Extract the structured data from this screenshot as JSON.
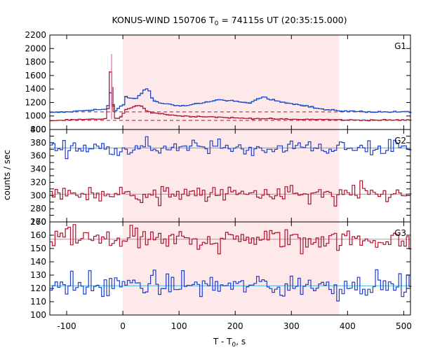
{
  "title": {
    "prefix": "KONUS-WIND 150706 T",
    "sub": "0",
    "suffix": " = 74115s UT (20:35:15.000)"
  },
  "colors": {
    "shade": "#fde8ea",
    "red_series": "#b0102a",
    "blue_series": "#1f3fc8",
    "pink_fit": "#e07ab8",
    "cyan_fit": "#38b8e0",
    "background_dash": "#b0102a"
  },
  "chart_data": {
    "type": "line",
    "title": "KONUS-WIND 150706 T0 = 74115s UT (20:35:15.000)",
    "xlabel": "T - T0, s",
    "ylabel": "counts / sec",
    "xlim": [
      -130,
      512
    ],
    "xticks": [
      -100,
      0,
      100,
      200,
      300,
      400,
      500
    ],
    "shaded_interval": [
      0,
      385
    ],
    "grid": false,
    "panels": [
      {
        "name": "G1",
        "ylim": [
          800,
          2200
        ],
        "yticks": [
          800,
          1000,
          1200,
          1400,
          1600,
          1800,
          2000,
          2200
        ],
        "series": [
          {
            "color": "blue",
            "x": [
              -130,
              -100,
              -60,
              -30,
              -22,
              -20,
              -17,
              -10,
              0,
              2,
              20,
              30,
              35,
              40,
              45,
              50,
              55,
              60,
              70,
              80,
              90,
              100,
              110,
              120,
              130,
              140,
              150,
              160,
              170,
              180,
              190,
              200,
              210,
              220,
              230,
              240,
              250,
              255,
              260,
              270,
              280,
              290,
              300,
              310,
              320,
              340,
              360,
              380,
              400,
              450,
              512
            ],
            "y": [
              1050,
              1060,
              1090,
              1100,
              1430,
              1160,
              1060,
              1120,
              1180,
              1280,
              1250,
              1330,
              1380,
              1400,
              1370,
              1260,
              1230,
              1200,
              1180,
              1180,
              1160,
              1150,
              1150,
              1170,
              1180,
              1190,
              1210,
              1220,
              1250,
              1230,
              1230,
              1220,
              1200,
              1190,
              1220,
              1250,
              1290,
              1260,
              1240,
              1230,
              1210,
              1200,
              1180,
              1170,
              1160,
              1120,
              1090,
              1080,
              1070,
              1060,
              1060
            ]
          },
          {
            "color": "red",
            "x": [
              -130,
              -100,
              -60,
              -30,
              -22,
              -20,
              -17,
              -10,
              0,
              2,
              20,
              30,
              40,
              50,
              60,
              80,
              100,
              150,
              200,
              250,
              300,
              350,
              400,
              450,
              512
            ],
            "y": [
              930,
              940,
              950,
              960,
              1920,
              1200,
              960,
              960,
              1050,
              1090,
              1140,
              1160,
              1080,
              1050,
              1040,
              1020,
              1000,
              990,
              970,
              960,
              950,
              950,
              940,
              940,
              940
            ]
          }
        ],
        "background_levels": [
          1060,
          935
        ]
      },
      {
        "name": "G2",
        "ylim": [
          260,
          400
        ],
        "yticks": [
          260,
          270,
          280,
          290,
          300,
          310,
          320,
          330,
          340,
          350,
          360,
          370,
          380,
          390,
          400
        ],
        "ytick_labels": [
          260,
          280,
          300,
          320,
          340,
          360,
          380,
          400
        ],
        "series": [
          {
            "color": "blue",
            "mean": 372
          },
          {
            "color": "red",
            "mean": 302
          }
        ]
      },
      {
        "name": "G3",
        "ylim": [
          100,
          170
        ],
        "yticks": [
          100,
          110,
          120,
          130,
          140,
          150,
          160,
          170
        ],
        "series": [
          {
            "color": "red",
            "mean": 157
          },
          {
            "color": "blue",
            "mean": 122
          }
        ]
      }
    ]
  }
}
